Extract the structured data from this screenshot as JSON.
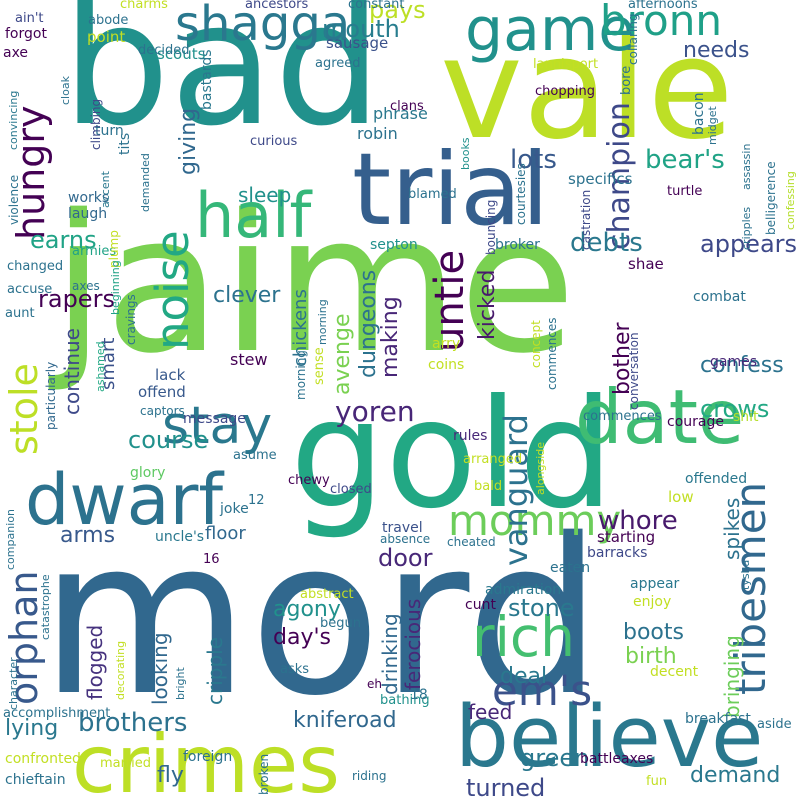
{
  "words": [
    {
      "text": "jaime",
      "color": "#7ad151"
    },
    {
      "text": "mord",
      "color": "#31688e"
    },
    {
      "text": "bad",
      "color": "#21918c"
    },
    {
      "text": "gold",
      "color": "#22a884"
    },
    {
      "text": "vale",
      "color": "#bddf26"
    },
    {
      "text": "trial",
      "color": "#355f8d"
    },
    {
      "text": "crimes",
      "color": "#bddf26"
    },
    {
      "text": "believe",
      "color": "#2a788e"
    },
    {
      "text": "half",
      "color": "#35b779"
    },
    {
      "text": "date",
      "color": "#3fbc73"
    },
    {
      "text": "dwarf",
      "color": "#2c728e"
    },
    {
      "text": "game",
      "color": "#21918c"
    },
    {
      "text": "shagga",
      "color": "#2a788e"
    },
    {
      "text": "stay",
      "color": "#2a788e"
    },
    {
      "text": "rich",
      "color": "#44bf70"
    },
    {
      "text": "mommy",
      "color": "#6ccd5a"
    },
    {
      "text": "em's",
      "color": "#3b528b"
    },
    {
      "text": "bronn",
      "color": "#1fa088"
    },
    {
      "text": "hungry",
      "color": "#440154"
    },
    {
      "text": "untie",
      "color": "#440154"
    },
    {
      "text": "noise",
      "color": "#22a884"
    },
    {
      "text": "orphan",
      "color": "#38598c"
    },
    {
      "text": "stole",
      "color": "#bddf26"
    },
    {
      "text": "tribesmen",
      "color": "#31688e"
    },
    {
      "text": "vanguard",
      "color": "#2c728e"
    },
    {
      "text": "champion",
      "color": "#3e4989"
    },
    {
      "text": "yoren",
      "color": "#482677"
    },
    {
      "text": "whore",
      "color": "#481a6c"
    },
    {
      "text": "course",
      "color": "#21918c"
    },
    {
      "text": "debts",
      "color": "#2a788e"
    },
    {
      "text": "lots",
      "color": "#38598c"
    },
    {
      "text": "bear's",
      "color": "#20a386"
    },
    {
      "text": "appears",
      "color": "#3e4989"
    },
    {
      "text": "earns",
      "color": "#20a386"
    },
    {
      "text": "sleep",
      "color": "#21918c"
    },
    {
      "text": "rapers",
      "color": "#440154"
    },
    {
      "text": "clever",
      "color": "#2c728e"
    },
    {
      "text": "mouth",
      "color": "#287d8e"
    },
    {
      "text": "needs",
      "color": "#3b528b"
    },
    {
      "text": "pays",
      "color": "#bddf26"
    },
    {
      "text": "brothers",
      "color": "#2c728e"
    },
    {
      "text": "kniferoad",
      "color": "#31688e"
    },
    {
      "text": "crows",
      "color": "#22a884"
    },
    {
      "text": "confess",
      "color": "#2c728e"
    },
    {
      "text": "demand",
      "color": "#2a788e"
    },
    {
      "text": "stone",
      "color": "#2a788e"
    },
    {
      "text": "door",
      "color": "#482878"
    },
    {
      "text": "feed",
      "color": "#482878"
    },
    {
      "text": "green",
      "color": "#2a788e"
    },
    {
      "text": "turned",
      "color": "#3e4989"
    },
    {
      "text": "birth",
      "color": "#7ad151"
    },
    {
      "text": "deal",
      "color": "#2a788e"
    },
    {
      "text": "boots",
      "color": "#2c728e"
    },
    {
      "text": "day's",
      "color": "#440154"
    },
    {
      "text": "agony",
      "color": "#21918c"
    },
    {
      "text": "lying",
      "color": "#2a788e"
    },
    {
      "text": "fly",
      "color": "#31688e"
    },
    {
      "text": "arms",
      "color": "#38598c"
    },
    {
      "text": "floor",
      "color": "#31688e"
    },
    {
      "text": "smart",
      "color": "#3b528b"
    },
    {
      "text": "continue",
      "color": "#3e4989"
    },
    {
      "text": "avenge",
      "color": "#7ad151"
    },
    {
      "text": "dungeons",
      "color": "#2c728e"
    },
    {
      "text": "making",
      "color": "#482677"
    },
    {
      "text": "kicked",
      "color": "#481a6c"
    },
    {
      "text": "spikes",
      "color": "#2c728e"
    },
    {
      "text": "bringing",
      "color": "#6ccd5a"
    },
    {
      "text": "flogged",
      "color": "#46327e"
    },
    {
      "text": "looking",
      "color": "#31688e"
    },
    {
      "text": "cripple",
      "color": "#2a788e"
    },
    {
      "text": "drinking",
      "color": "#31688e"
    },
    {
      "text": "ferocious",
      "color": "#482878"
    },
    {
      "text": "chickens",
      "color": "#2c728e"
    },
    {
      "text": "giving",
      "color": "#31688e"
    },
    {
      "text": "bother",
      "color": "#440154"
    },
    {
      "text": "robin",
      "color": "#2c728e"
    },
    {
      "text": "phrase",
      "color": "#2a788e"
    },
    {
      "text": "sausage",
      "color": "#3b528b"
    },
    {
      "text": "scouts",
      "color": "#21918c"
    },
    {
      "text": "point",
      "color": "#c2df23"
    },
    {
      "text": "laugh",
      "color": "#31688e"
    },
    {
      "text": "works",
      "color": "#31688e"
    },
    {
      "text": "stew",
      "color": "#440154"
    },
    {
      "text": "message",
      "color": "#3e4989"
    },
    {
      "text": "offend",
      "color": "#38598c"
    },
    {
      "text": "lack",
      "color": "#38598c"
    },
    {
      "text": "rules",
      "color": "#482878"
    },
    {
      "text": "shae",
      "color": "#440154"
    },
    {
      "text": "arry",
      "color": "#c2df23"
    },
    {
      "text": "coins",
      "color": "#c2df23"
    },
    {
      "text": "combat",
      "color": "#2c728e"
    },
    {
      "text": "games",
      "color": "#482878"
    },
    {
      "text": "courage",
      "color": "#440154"
    },
    {
      "text": "shit",
      "color": "#b5de2b"
    },
    {
      "text": "glory",
      "color": "#5ec962"
    },
    {
      "text": "joke",
      "color": "#2c728e"
    },
    {
      "text": "uncle's",
      "color": "#2a788e"
    },
    {
      "text": "travel",
      "color": "#3b528b"
    },
    {
      "text": "starting",
      "color": "#440154"
    },
    {
      "text": "eaten",
      "color": "#2c728e"
    },
    {
      "text": "barracks",
      "color": "#3e4989"
    },
    {
      "text": "admiration",
      "color": "#2a788e"
    },
    {
      "text": "cunt",
      "color": "#440154"
    },
    {
      "text": "enjoy",
      "color": "#c2df23"
    },
    {
      "text": "appear",
      "color": "#2a788e"
    },
    {
      "text": "decent",
      "color": "#c2df23"
    },
    {
      "text": "low",
      "color": "#c2df23"
    },
    {
      "text": "offended",
      "color": "#2a788e"
    },
    {
      "text": "specifics",
      "color": "#2c728e"
    },
    {
      "text": "turtle",
      "color": "#440154"
    },
    {
      "text": "broker",
      "color": "#2c728e"
    },
    {
      "text": "septon",
      "color": "#21918c"
    },
    {
      "text": "armies",
      "color": "#20a386"
    },
    {
      "text": "plump",
      "color": "#c2df23"
    },
    {
      "text": "accent",
      "color": "#2a788e"
    },
    {
      "text": "demanded",
      "color": "#2c728e"
    },
    {
      "text": "beginning",
      "color": "#20a386"
    },
    {
      "text": "cravings",
      "color": "#2c728e"
    },
    {
      "text": "particularly",
      "color": "#31688e"
    },
    {
      "text": "axes",
      "color": "#2c728e"
    },
    {
      "text": "changed",
      "color": "#2c728e"
    },
    {
      "text": "accuse",
      "color": "#2c728e"
    },
    {
      "text": "aunt",
      "color": "#2c728e"
    },
    {
      "text": "violence",
      "color": "#2c728e"
    },
    {
      "text": "convincing",
      "color": "#2a788e"
    },
    {
      "text": "climbing",
      "color": "#3e4989"
    },
    {
      "text": "tits",
      "color": "#2c728e"
    },
    {
      "text": "turn",
      "color": "#2c728e"
    },
    {
      "text": "bastards",
      "color": "#2a788e"
    },
    {
      "text": "books",
      "color": "#21918c"
    },
    {
      "text": "curious",
      "color": "#3e4989"
    },
    {
      "text": "blamed",
      "color": "#2c728e"
    },
    {
      "text": "courtesies",
      "color": "#2c728e"
    },
    {
      "text": "bouncing",
      "color": "#3e4989"
    },
    {
      "text": "castration",
      "color": "#3e4989"
    },
    {
      "text": "assassin",
      "color": "#2c728e"
    },
    {
      "text": "cripples",
      "color": "#2c728e"
    },
    {
      "text": "belligerence",
      "color": "#2c728e"
    },
    {
      "text": "confessing",
      "color": "#b5de2b"
    },
    {
      "text": "midget",
      "color": "#2c728e"
    },
    {
      "text": "bacon",
      "color": "#2c728e"
    },
    {
      "text": "bore",
      "color": "#2c728e"
    },
    {
      "text": "chopping",
      "color": "#440154"
    },
    {
      "text": "collaring",
      "color": "#2c728e"
    },
    {
      "text": "clans",
      "color": "#440154"
    },
    {
      "text": "lannisport",
      "color": "#c2df23"
    },
    {
      "text": "agreed",
      "color": "#2c728e"
    },
    {
      "text": "decided",
      "color": "#2c728e"
    },
    {
      "text": "ancestors",
      "color": "#3e4989"
    },
    {
      "text": "constant",
      "color": "#2c728e"
    },
    {
      "text": "afternoons",
      "color": "#2c728e"
    },
    {
      "text": "ain't",
      "color": "#3e4989"
    },
    {
      "text": "abode",
      "color": "#2c728e"
    },
    {
      "text": "charms",
      "color": "#c2df23"
    },
    {
      "text": "forgot",
      "color": "#440154"
    },
    {
      "text": "axe",
      "color": "#440154"
    },
    {
      "text": "sense",
      "color": "#c2df23"
    },
    {
      "text": "morning",
      "color": "#2c728e"
    },
    {
      "text": "asume",
      "color": "#2c728e"
    },
    {
      "text": "captors",
      "color": "#2c728e"
    },
    {
      "text": "ashamed",
      "color": "#22a884"
    },
    {
      "text": "concept",
      "color": "#c2df23"
    },
    {
      "text": "commences",
      "color": "#2c728e"
    },
    {
      "text": "conversation",
      "color": "#3e4989"
    },
    {
      "text": "arranged",
      "color": "#c2df23"
    },
    {
      "text": "bald",
      "color": "#c2df23"
    },
    {
      "text": "chewy",
      "color": "#440154"
    },
    {
      "text": "12",
      "color": "#2c728e"
    },
    {
      "text": "closed",
      "color": "#3e4989"
    },
    {
      "text": "absence",
      "color": "#2c728e"
    },
    {
      "text": "cheated",
      "color": "#2c728e"
    },
    {
      "text": "16",
      "color": "#440154"
    },
    {
      "text": "abstract",
      "color": "#c2df23"
    },
    {
      "text": "begun",
      "color": "#2c728e"
    },
    {
      "text": "asks",
      "color": "#2c728e"
    },
    {
      "text": "eh",
      "color": "#440154"
    },
    {
      "text": "bathing",
      "color": "#21918c"
    },
    {
      "text": "18",
      "color": "#2c728e"
    },
    {
      "text": "alongside",
      "color": "#c2df23"
    },
    {
      "text": "tysha",
      "color": "#2c728e"
    },
    {
      "text": "companion",
      "color": "#2c728e"
    },
    {
      "text": "catastrophe",
      "color": "#2c728e"
    },
    {
      "text": "accomplishment",
      "color": "#2c728e"
    },
    {
      "text": "character",
      "color": "#2c728e"
    },
    {
      "text": "bright",
      "color": "#2c728e"
    },
    {
      "text": "decorating",
      "color": "#c2df23"
    },
    {
      "text": "confronted",
      "color": "#c2df23"
    },
    {
      "text": "chieftain",
      "color": "#2c728e"
    },
    {
      "text": "married",
      "color": "#c2df23"
    },
    {
      "text": "foreign",
      "color": "#2c728e"
    },
    {
      "text": "broken",
      "color": "#2c728e"
    },
    {
      "text": "riding",
      "color": "#2c728e"
    },
    {
      "text": "battleaxes",
      "color": "#440154"
    },
    {
      "text": "breakfast",
      "color": "#2c728e"
    },
    {
      "text": "fun",
      "color": "#c2df23"
    },
    {
      "text": "aside",
      "color": "#2c728e"
    },
    {
      "text": "cloak",
      "color": "#2c728e"
    },
    {
      "text": "carve",
      "color": "#c2df23"
    },
    {
      "text": "courses",
      "color": "#c2df23"
    }
  ]
}
